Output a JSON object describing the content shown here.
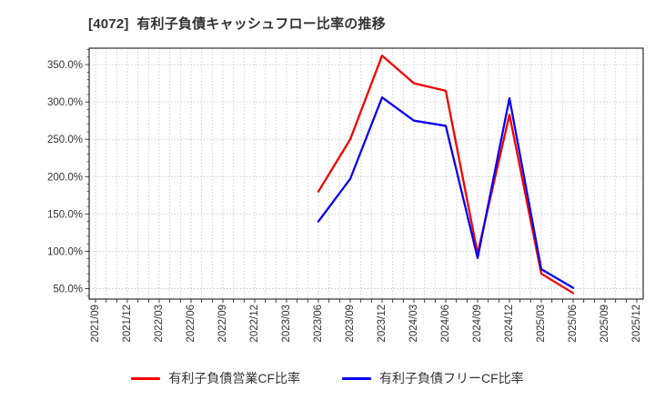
{
  "title": "[4072]  有利子負債キャッシュフロー比率の推移",
  "colors": {
    "operating_cf": "#f50000",
    "free_cf": "#0900f5",
    "grid": "#bdbdbd",
    "axis": "#2b2b2b",
    "text": "#333333"
  },
  "legend": [
    {
      "label": "有利子負債営業CF比率",
      "color": "#f50000"
    },
    {
      "label": "有利子負債フリーCF比率",
      "color": "#0900f5"
    }
  ],
  "chart_data": {
    "type": "line",
    "title": "[4072] 有利子負債キャッシュフロー比率の推移",
    "categories": [
      "2021/09",
      "2021/12",
      "2022/03",
      "2022/06",
      "2022/09",
      "2022/12",
      "2023/03",
      "2023/06",
      "2023/09",
      "2023/12",
      "2024/03",
      "2024/06",
      "2024/09",
      "2024/12",
      "2025/03",
      "2025/06",
      "2025/09",
      "2025/12"
    ],
    "series": [
      {
        "name": "有利子負債営業CF比率",
        "color": "#f50000",
        "values": [
          null,
          null,
          null,
          null,
          null,
          null,
          null,
          180,
          250,
          362,
          325,
          315,
          97,
          283,
          70,
          44,
          null,
          null
        ]
      },
      {
        "name": "有利子負債フリーCF比率",
        "color": "#0900f5",
        "values": [
          null,
          null,
          null,
          null,
          null,
          null,
          null,
          140,
          197,
          306,
          275,
          268,
          91,
          305,
          76,
          51,
          null,
          null
        ]
      }
    ],
    "xlabel": "",
    "ylabel": "",
    "y_ticks": [
      50,
      100,
      150,
      200,
      250,
      300,
      350
    ],
    "y_tick_labels": [
      "50.0%",
      "100.0%",
      "150.0%",
      "200.0%",
      "250.0%",
      "300.0%",
      "350.0%"
    ],
    "ylim": [
      36,
      372
    ],
    "x_minor_divisions_per_quarter": 3,
    "grid": true,
    "grid_style": "dotted",
    "legend_position": "bottom"
  }
}
